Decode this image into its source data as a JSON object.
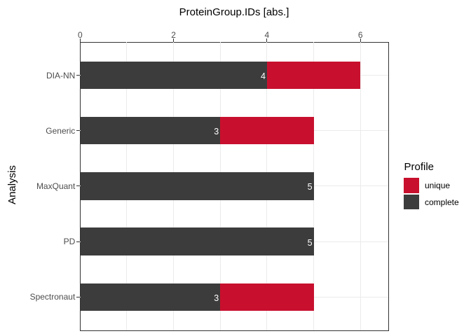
{
  "chart_data": {
    "type": "bar",
    "orientation": "horizontal",
    "stacked": true,
    "title": "ProteinGroup.IDs [abs.]",
    "xlabel": "ProteinGroup.IDs [abs.]",
    "ylabel": "Analysis",
    "categories": [
      "DIA-NN",
      "Generic",
      "MaxQuant",
      "PD",
      "Spectronaut"
    ],
    "series": [
      {
        "name": "complete",
        "color": "#3C3C3C",
        "values": [
          4,
          3,
          5,
          5,
          3
        ]
      },
      {
        "name": "unique",
        "color": "#C8102E",
        "values": [
          2,
          2,
          0,
          0,
          2
        ]
      }
    ],
    "totals": [
      6,
      5,
      5,
      5,
      5
    ],
    "bar_value_labels": {
      "color": "#FFFFFF",
      "values": [
        "4",
        "3",
        "5",
        "5",
        "3"
      ]
    },
    "x_ticks": [
      {
        "label": "0",
        "value": 0
      },
      {
        "label": "2",
        "value": 2
      },
      {
        "label": "4",
        "value": 4
      },
      {
        "label": "6",
        "value": 6
      }
    ],
    "xlim": [
      0,
      6.6
    ],
    "x_axis_position": "top",
    "grid": {
      "color": "#EBEBEB",
      "vertical_at": [
        1,
        2,
        3,
        4,
        5,
        6
      ],
      "horizontal": "category-centers"
    },
    "panel_background": "#FFFFFF",
    "panel_border_color": "#333333",
    "axis_text_color": "#4D4D4D",
    "legend": {
      "title": "Profile",
      "position": "right",
      "entries": [
        {
          "label": "unique",
          "color": "#C8102E"
        },
        {
          "label": "complete",
          "color": "#3C3C3C"
        }
      ]
    }
  }
}
